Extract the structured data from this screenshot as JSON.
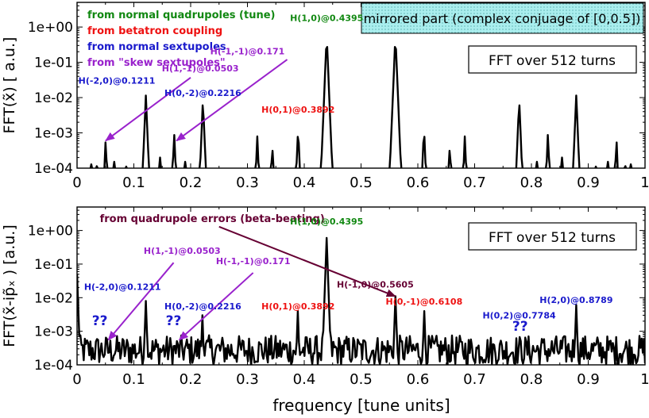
{
  "colors": {
    "green": "#118811",
    "red": "#ee1111",
    "blue": "#1a1acc",
    "violet": "#9922cc",
    "maroon": "#660033",
    "cyan_box": "#aaeeee",
    "line": "#000000"
  },
  "xlabel": "frequency [tune units]",
  "chart_data": [
    {
      "type": "line",
      "ylabel": "FFT(x̃) [ a.u.]",
      "box_label": "FFT over 512 turns",
      "mirror_note": "mirrored part (complex conjuage of [0,0.5])",
      "xlim": [
        0,
        1
      ],
      "ylim": [
        0.0001,
        5
      ],
      "yscale": "log",
      "xticks": [
        "0",
        "0.1",
        "0.2",
        "0.3",
        "0.4",
        "0.5",
        "0.6",
        "0.7",
        "0.8",
        "0.9",
        "1"
      ],
      "yticks": [
        "1e+00",
        "1e-01",
        "1e-02",
        "1e-03",
        "1e-04"
      ],
      "legend": [
        {
          "text": "from normal quadrupoles (tune)",
          "color": "green"
        },
        {
          "text": "from betatron coupling",
          "color": "red"
        },
        {
          "text": "from normal sextupoles",
          "color": "blue"
        },
        {
          "text": "from \"skew sextupoles\"",
          "color": "violet"
        }
      ],
      "floor": 0.0001,
      "peaks": [
        {
          "x": 0.0245,
          "y": 0.0002
        },
        {
          "x": 0.0355,
          "y": 0.00025
        },
        {
          "x": 0.0503,
          "y": 0.0007
        },
        {
          "x": 0.0657,
          "y": 0.0002
        },
        {
          "x": 0.0872,
          "y": 0.0002
        },
        {
          "x": 0.1211,
          "y": 0.012
        },
        {
          "x": 0.1457,
          "y": 0.0003
        },
        {
          "x": 0.171,
          "y": 0.001
        },
        {
          "x": 0.1907,
          "y": 0.0002
        },
        {
          "x": 0.2216,
          "y": 0.009
        },
        {
          "x": 0.3173,
          "y": 0.0008
        },
        {
          "x": 0.3437,
          "y": 0.0005
        },
        {
          "x": 0.3892,
          "y": 0.0015
        },
        {
          "x": 0.4395,
          "y": 0.6
        },
        {
          "x": 0.5605,
          "y": 0.6
        },
        {
          "x": 0.6108,
          "y": 0.0015
        },
        {
          "x": 0.6563,
          "y": 0.0005
        },
        {
          "x": 0.6827,
          "y": 0.0008
        },
        {
          "x": 0.7784,
          "y": 0.009
        },
        {
          "x": 0.8093,
          "y": 0.0002
        },
        {
          "x": 0.829,
          "y": 0.001
        },
        {
          "x": 0.8543,
          "y": 0.0003
        },
        {
          "x": 0.8789,
          "y": 0.012
        },
        {
          "x": 0.9128,
          "y": 0.0002
        },
        {
          "x": 0.9343,
          "y": 0.0002
        },
        {
          "x": 0.9497,
          "y": 0.0007
        },
        {
          "x": 0.9645,
          "y": 0.00025
        },
        {
          "x": 0.9755,
          "y": 0.0002
        }
      ],
      "labels": [
        {
          "text": "H(1,0)@0.4395",
          "color": "green",
          "x": 0.4395,
          "y": 1.5
        },
        {
          "text": "H(-1,-1)@0.171",
          "color": "violet",
          "x": 0.3,
          "y": 0.17
        },
        {
          "text": "H(1,-1)@0.0503",
          "color": "violet",
          "x": 0.217,
          "y": 0.055
        },
        {
          "text": "H(-2,0)@0.1211",
          "color": "blue",
          "x": 0.07,
          "y": 0.025
        },
        {
          "text": "H(0,-2)@0.2216",
          "color": "blue",
          "x": 0.2216,
          "y": 0.011
        },
        {
          "text": "H(0,1)@0.3892",
          "color": "red",
          "x": 0.3892,
          "y": 0.0037
        }
      ],
      "arrows": [
        {
          "color": "violet",
          "from": [
            0.2,
            0.037
          ],
          "to": [
            0.0503,
            0.0006
          ]
        },
        {
          "color": "violet",
          "from": [
            0.37,
            0.12
          ],
          "to": [
            0.175,
            0.0006
          ]
        }
      ]
    },
    {
      "type": "line",
      "ylabel": "FFT(x̃-ip̃ₓ ) [a.u.]",
      "box_label": "FFT over 512 turns",
      "xlim": [
        0,
        1
      ],
      "ylim": [
        0.0001,
        5
      ],
      "yscale": "log",
      "xticks": [
        "0",
        "0.1",
        "0.2",
        "0.3",
        "0.4",
        "0.5",
        "0.6",
        "0.7",
        "0.8",
        "0.9",
        "1"
      ],
      "yticks": [
        "1e+00",
        "1e-01",
        "1e-02",
        "1e-03",
        "1e-04"
      ],
      "noise_floor": 0.0003,
      "peaks": [
        {
          "x": 0.0,
          "y": 0.05
        },
        {
          "x": 0.1211,
          "y": 0.008
        },
        {
          "x": 0.2216,
          "y": 0.003
        },
        {
          "x": 0.3892,
          "y": 0.004
        },
        {
          "x": 0.4395,
          "y": 0.6
        },
        {
          "x": 0.5605,
          "y": 0.011
        },
        {
          "x": 0.6108,
          "y": 0.004
        },
        {
          "x": 0.8789,
          "y": 0.006
        }
      ],
      "labels": [
        {
          "text": "from quadrupole errors (beta-beating)",
          "color": "maroon",
          "x": 0.04,
          "y": 1.8
        },
        {
          "text": "H(1,0)@0.4395",
          "color": "green",
          "x": 0.4395,
          "y": 1.5
        },
        {
          "text": "H(1,-1)@0.0503",
          "color": "violet",
          "x": 0.185,
          "y": 0.2
        },
        {
          "text": "H(-1,-1)@0.171",
          "color": "violet",
          "x": 0.31,
          "y": 0.1
        },
        {
          "text": "H(-2,0)@0.1211",
          "color": "blue",
          "x": 0.08,
          "y": 0.017
        },
        {
          "text": "H(0,-2)@0.2216",
          "color": "blue",
          "x": 0.2216,
          "y": 0.0045
        },
        {
          "text": "H(0,1)@0.3892",
          "color": "red",
          "x": 0.3892,
          "y": 0.0045
        },
        {
          "text": "H(-1,0)@0.5605",
          "color": "maroon",
          "x": 0.525,
          "y": 0.02
        },
        {
          "text": "H(0,-1)@0.6108",
          "color": "red",
          "x": 0.611,
          "y": 0.0062
        },
        {
          "text": "H(0,2)@0.7784",
          "color": "blue",
          "x": 0.7784,
          "y": 0.0024
        },
        {
          "text": "H(2,0)@0.8789",
          "color": "blue",
          "x": 0.8789,
          "y": 0.007
        },
        {
          "text": "??",
          "color": "blue",
          "x": 0.04,
          "y": 0.0015,
          "size": 17
        },
        {
          "text": "??",
          "color": "blue",
          "x": 0.17,
          "y": 0.0015,
          "size": 17
        },
        {
          "text": "??",
          "color": "blue",
          "x": 0.78,
          "y": 0.00105,
          "size": 17
        }
      ],
      "arrows": [
        {
          "color": "maroon",
          "from": [
            0.25,
            1.3
          ],
          "to": [
            0.5605,
            0.011
          ]
        },
        {
          "color": "violet",
          "from": [
            0.17,
            0.11
          ],
          "to": [
            0.055,
            0.00055
          ]
        },
        {
          "color": "violet",
          "from": [
            0.31,
            0.055
          ],
          "to": [
            0.18,
            0.00055
          ]
        }
      ]
    }
  ]
}
